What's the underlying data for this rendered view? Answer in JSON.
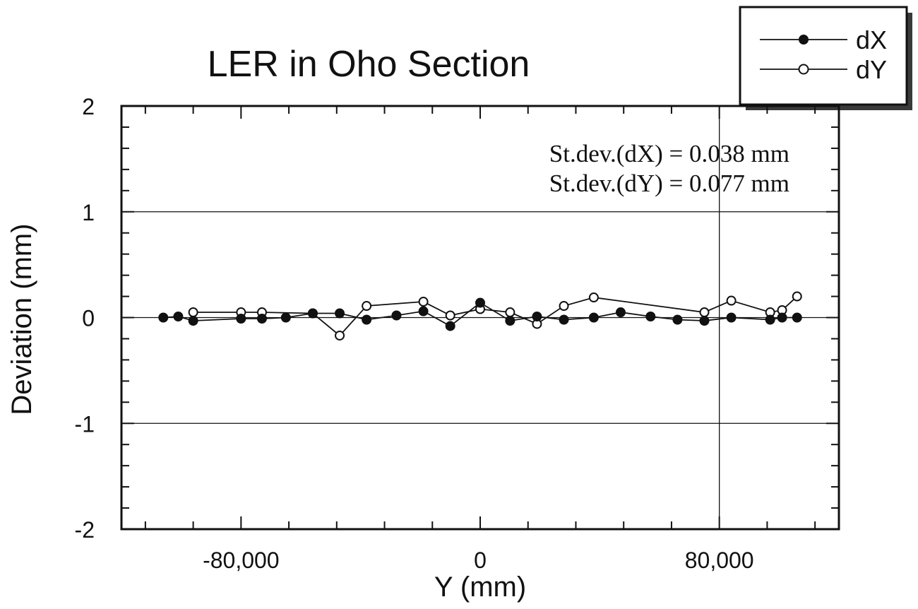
{
  "chart_data": {
    "type": "line",
    "title": "LER  in Oho Section",
    "xlabel": "Y  (mm)",
    "ylabel": "Deviation  (mm)",
    "xlim": [
      -120000,
      120000
    ],
    "ylim": [
      -2,
      2
    ],
    "x_ticks": [
      -80000,
      0,
      80000
    ],
    "x_tick_labels": [
      "-80,000",
      "0",
      "80,000"
    ],
    "y_ticks": [
      -2,
      -1,
      0,
      1,
      2
    ],
    "y_tick_labels": [
      "-2",
      "-1",
      "0",
      "1",
      "2"
    ],
    "grid": {
      "x": [
        80000
      ],
      "y": [
        -1,
        0,
        1
      ]
    },
    "legend_position": "top-right, outside plot",
    "annotations": [
      "St.dev.(dX) = 0.038 mm",
      "St.dev.(dY) = 0.077 mm"
    ],
    "series": [
      {
        "name": "dX",
        "marker": "filled-circle",
        "points": [
          [
            -106000,
            0.0
          ],
          [
            -101000,
            0.01
          ],
          [
            -96000,
            -0.03
          ],
          [
            -80000,
            -0.01
          ],
          [
            -73000,
            -0.01
          ],
          [
            -65000,
            0.0
          ],
          [
            -56000,
            0.04
          ],
          [
            -47000,
            0.04
          ],
          [
            -38000,
            -0.02
          ],
          [
            -28000,
            0.02
          ],
          [
            -19000,
            0.06
          ],
          [
            -10000,
            -0.08
          ],
          [
            0,
            0.14
          ],
          [
            10000,
            -0.03
          ],
          [
            19000,
            0.01
          ],
          [
            28000,
            -0.02
          ],
          [
            38000,
            0.0
          ],
          [
            47000,
            0.05
          ],
          [
            57000,
            0.01
          ],
          [
            66000,
            -0.02
          ],
          [
            75000,
            -0.03
          ],
          [
            84000,
            0.0
          ],
          [
            97000,
            -0.02
          ],
          [
            101000,
            0.0
          ],
          [
            106000,
            0.0
          ]
        ]
      },
      {
        "name": "dY",
        "marker": "open-circle",
        "points": [
          [
            -96000,
            0.05
          ],
          [
            -80000,
            0.05
          ],
          [
            -73000,
            0.05
          ],
          [
            -56000,
            0.04
          ],
          [
            -47000,
            -0.17
          ],
          [
            -38000,
            0.11
          ],
          [
            -19000,
            0.15
          ],
          [
            -10000,
            0.02
          ],
          [
            0,
            0.08
          ],
          [
            10000,
            0.05
          ],
          [
            19000,
            -0.06
          ],
          [
            28000,
            0.11
          ],
          [
            38000,
            0.19
          ],
          [
            75000,
            0.05
          ],
          [
            84000,
            0.16
          ],
          [
            97000,
            0.05
          ],
          [
            101000,
            0.07
          ],
          [
            106000,
            0.2
          ]
        ]
      }
    ]
  },
  "colors": {
    "ink": "#111111",
    "background": "#ffffff",
    "legend_shadow": "#3a3a3a"
  }
}
